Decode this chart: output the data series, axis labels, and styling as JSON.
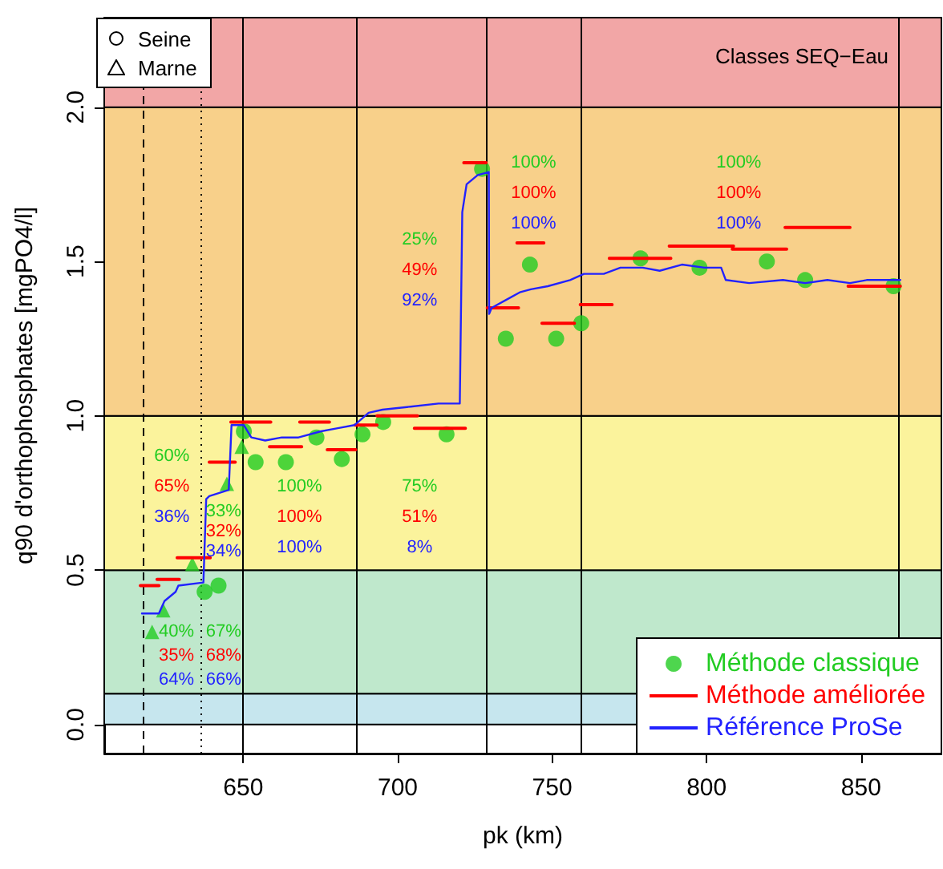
{
  "chart_data": {
    "type": "scatter",
    "xlabel": "pk (km)",
    "ylabel": "q90 d'orthophosphates [mgPO4/l]",
    "xlim": [
      605,
      876
    ],
    "xticks": [
      650,
      700,
      750,
      800,
      850
    ],
    "ylim": [
      -0.094,
      2.29
    ],
    "yticks": [
      {
        "value": 0,
        "label": "0.0"
      },
      {
        "value": 0.5,
        "label": "0.5"
      },
      {
        "value": 1,
        "label": "1.0"
      },
      {
        "value": 1.5,
        "label": "1.5"
      },
      {
        "value": 2,
        "label": "2.0"
      }
    ],
    "grid": false,
    "legend": "bottom right",
    "series": [
      {
        "name": "Méthode classique",
        "marker": "circle",
        "color": "#22cc22",
        "x": [
          637.5,
          642,
          650.2,
          654,
          663.8,
          673.7,
          681.9,
          688.6,
          695.3,
          715.8,
          727.3,
          735,
          742.8,
          751.3,
          759.4,
          778.6,
          797.7,
          819.5,
          831.9,
          860.5
        ],
        "values": [
          0.43,
          0.45,
          0.95,
          0.85,
          0.85,
          0.93,
          0.86,
          0.94,
          0.98,
          0.94,
          1.8,
          1.25,
          1.49,
          1.25,
          1.3,
          1.51,
          1.48,
          1.5,
          1.44,
          1.42
        ]
      },
      {
        "marker": "triangle",
        "color": "#22cc22",
        "x": [
          620.5,
          624.1,
          633.5,
          644.7,
          649.5
        ],
        "values": [
          0.3,
          0.37,
          0.52,
          0.78,
          0.9
        ]
      },
      {
        "name": "Méthode améliorée",
        "type": "line",
        "marker": "none",
        "color": "#ff0000",
        "x": [
          616.7,
          622.7,
          null,
          622.1,
          629.3,
          null,
          628.6,
          639.3,
          null,
          639,
          647.4,
          null,
          646,
          658.9,
          null,
          658.5,
          668.9,
          null,
          668.3,
          677.9,
          null,
          677.2,
          686.4,
          null,
          686.2,
          693.3,
          null,
          693.3,
          706.4,
          null,
          705.4,
          721.9,
          null,
          721.4,
          728.6,
          null,
          729,
          739.1,
          null,
          738.6,
          747.3,
          null,
          746.7,
          757.2,
          null,
          759.1,
          769.4,
          null,
          768.5,
          788.4,
          null,
          787.9,
          808.7,
          null,
          808.3,
          825.9,
          null,
          825.4,
          846.4,
          null,
          845.8,
          862.7
        ],
        "values": [
          0.45,
          0.45,
          null,
          0.47,
          0.47,
          null,
          0.54,
          0.54,
          null,
          0.85,
          0.85,
          null,
          0.98,
          0.98,
          null,
          0.9,
          0.9,
          null,
          0.98,
          0.98,
          null,
          0.89,
          0.89,
          null,
          0.97,
          0.97,
          null,
          1.0,
          1.0,
          null,
          0.96,
          0.96,
          null,
          1.82,
          1.82,
          null,
          1.35,
          1.35,
          null,
          1.56,
          1.56,
          null,
          1.3,
          1.3,
          null,
          1.36,
          1.36,
          null,
          1.51,
          1.51,
          null,
          1.55,
          1.55,
          null,
          1.54,
          1.54,
          null,
          1.61,
          1.61,
          null,
          1.42,
          1.42
        ]
      },
      {
        "name": "Référence ProSe",
        "type": "line",
        "marker": "none",
        "color": "#2222ff",
        "x": [
          617.2,
          622.7,
          624.5,
          628.1,
          629,
          637.1,
          638,
          639,
          645.3,
          646.2,
          650.2,
          652.6,
          657.1,
          662.5,
          667.9,
          675.2,
          680.6,
          686,
          690.6,
          695.1,
          704.2,
          713.2,
          720.1,
          720.9,
          722.3,
          725.9,
          729.5,
          729.6,
          730.4,
          735.9,
          739.5,
          743.1,
          748.6,
          755.8,
          760.3,
          766.7,
          772.1,
          779.3,
          784.8,
          792,
          799.3,
          804.7,
          806.2,
          813.8,
          824.7,
          831.9,
          839.1,
          846.4,
          851.8,
          862.7
        ],
        "values": [
          0.36,
          0.36,
          0.4,
          0.43,
          0.45,
          0.46,
          0.73,
          0.74,
          0.76,
          0.97,
          0.97,
          0.93,
          0.92,
          0.93,
          0.93,
          0.95,
          0.96,
          0.97,
          1.01,
          1.02,
          1.03,
          1.04,
          1.04,
          1.66,
          1.75,
          1.78,
          1.79,
          1.33,
          1.35,
          1.38,
          1.4,
          1.41,
          1.42,
          1.44,
          1.46,
          1.46,
          1.48,
          1.48,
          1.47,
          1.49,
          1.48,
          1.48,
          1.44,
          1.43,
          1.44,
          1.43,
          1.44,
          1.43,
          1.44,
          1.44
        ]
      }
    ],
    "bands": [
      {
        "axis": "y",
        "from": 0,
        "to": 0.1,
        "color": "#c6e6ee"
      },
      {
        "axis": "y",
        "from": 0.1,
        "to": 0.5,
        "color": "#bfe8cc"
      },
      {
        "axis": "y",
        "from": 0.5,
        "to": 1,
        "color": "#fbf39c"
      },
      {
        "axis": "y",
        "from": 1,
        "to": 2,
        "color": "#f8d08a"
      },
      {
        "axis": "y",
        "from": 2,
        "to": 2.29,
        "color": "#f2a6a6"
      }
    ],
    "ref_lines": [
      {
        "axis": "x",
        "value": 617.4,
        "line_style": "dashed",
        "color": "#000000"
      },
      {
        "axis": "x",
        "value": 636.4,
        "line_style": "dotted",
        "color": "#000000"
      },
      {
        "axis": "x",
        "value": 650,
        "line_style": "solid",
        "color": "#000000"
      },
      {
        "axis": "x",
        "value": 686.4,
        "line_style": "solid",
        "color": "#000000"
      },
      {
        "axis": "x",
        "value": 728.8,
        "line_style": "solid",
        "color": "#000000"
      },
      {
        "axis": "x",
        "value": 759.2,
        "line_style": "solid",
        "color": "#000000"
      },
      {
        "axis": "x",
        "value": 862,
        "line_style": "solid",
        "color": "#000000"
      }
    ],
    "annotations": [
      "Seine",
      "Marne",
      "Classes SEQ−Eau",
      "40%",
      "35%",
      "64%",
      "67%",
      "68%",
      "66%",
      "60%",
      "65%",
      "36%",
      "33%",
      "32%",
      "34%",
      "100%",
      "100%",
      "100%",
      "75%",
      "51%",
      "8%",
      "25%",
      "49%",
      "92%",
      "100%",
      "100%",
      "100%",
      "100%",
      "100%",
      "100%"
    ]
  }
}
